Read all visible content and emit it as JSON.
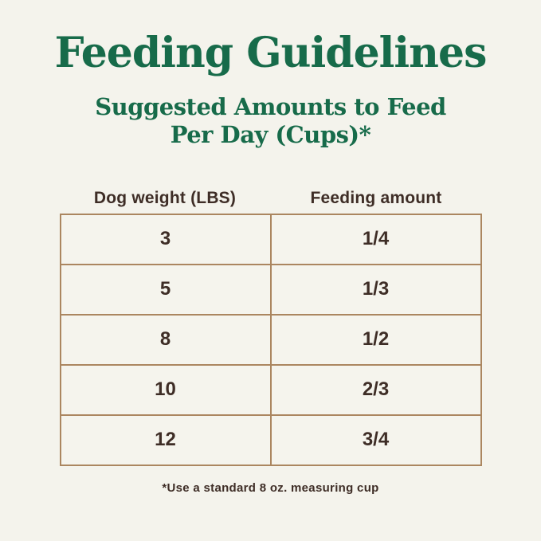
{
  "page": {
    "title": "Feeding Guidelines",
    "subtitle_line1": "Suggested Amounts to Feed",
    "subtitle_line2": "Per Day (Cups)*",
    "footnote": "*Use a standard 8 oz. measuring cup"
  },
  "colors": {
    "background": "#f4f3ec",
    "heading_green": "#176b4a",
    "table_border": "#ab8660",
    "text_brown": "#3e2d26"
  },
  "table": {
    "columns": [
      "Dog weight (LBS)",
      "Feeding amount"
    ],
    "rows": [
      {
        "weight": "3",
        "amount": "1/4"
      },
      {
        "weight": "5",
        "amount": "1/3"
      },
      {
        "weight": "8",
        "amount": "1/2"
      },
      {
        "weight": "10",
        "amount": "2/3"
      },
      {
        "weight": "12",
        "amount": "3/4"
      }
    ]
  },
  "chart_data": {
    "type": "table",
    "title": "Feeding Guidelines",
    "subtitle": "Suggested Amounts to Feed Per Day (Cups)*",
    "columns": [
      "Dog weight (LBS)",
      "Feeding amount"
    ],
    "rows": [
      [
        "3",
        "1/4"
      ],
      [
        "5",
        "1/3"
      ],
      [
        "8",
        "1/2"
      ],
      [
        "10",
        "2/3"
      ],
      [
        "12",
        "3/4"
      ]
    ],
    "footnote": "*Use a standard 8 oz. measuring cup",
    "layout": "two-column centered table, header labels above table, no grid shading"
  }
}
